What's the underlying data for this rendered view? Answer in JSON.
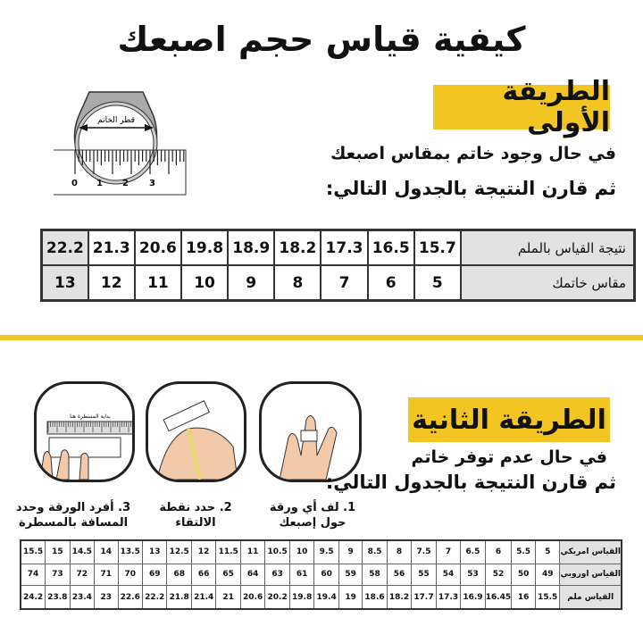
{
  "title": "كيفية قياس حجم اصبعك",
  "method1": {
    "heading": "الطريقة الأولى",
    "line1": "في حال وجود خاتم بمقاس اصبعك",
    "line2": "ثم قارن النتيجة بالجدول التالي:",
    "illustration": {
      "label": "قطر الخاتم",
      "ticks": [
        "0",
        "1",
        "2",
        "3"
      ]
    },
    "table": {
      "row_headers": [
        "نتيجة القياس بالملم",
        "مقاس خاتمك"
      ],
      "mm": [
        "15.7",
        "16.5",
        "17.3",
        "18.2",
        "18.9",
        "19.8",
        "20.6",
        "21.3",
        "22.2"
      ],
      "size": [
        "5",
        "6",
        "7",
        "8",
        "9",
        "10",
        "11",
        "12",
        "13"
      ]
    }
  },
  "method2": {
    "heading": "الطريقة الثانية",
    "line1": "في حال عدم توفر خاتم",
    "line2": "ثم قارن النتيجة بالجدول التالي:",
    "steps": [
      {
        "text": "1. لف أي ورقة حول إصبعك"
      },
      {
        "text": "2. حدد نقطة الالتقاء"
      },
      {
        "text": "3. أفرد الورقة وحدد المسافة بالمسطرة",
        "ruler_label": "بداية المسطرة هنا"
      }
    ],
    "table": {
      "row_headers": [
        "القياس امريكي",
        "القياس اوروبي",
        "القياس ملم"
      ],
      "us": [
        "5",
        "5.5",
        "6",
        "6.5",
        "7",
        "7.5",
        "8",
        "8.5",
        "9",
        "9.5",
        "10",
        "10.5",
        "11",
        "11.5",
        "12",
        "12.5",
        "13",
        "13.5",
        "14",
        "14.5",
        "15",
        "15.5"
      ],
      "eu": [
        "49",
        "50",
        "52",
        "53",
        "54",
        "55",
        "56",
        "58",
        "59",
        "60",
        "61",
        "63",
        "64",
        "65",
        "66",
        "68",
        "69",
        "70",
        "71",
        "72",
        "73",
        "74"
      ],
      "mm": [
        "15.5",
        "16",
        "16.45",
        "16.9",
        "17.3",
        "17.7",
        "18.2",
        "18.6",
        "19",
        "19.4",
        "19.8",
        "20.2",
        "20.6",
        "21",
        "21.4",
        "21.8",
        "22.2",
        "22.6",
        "23",
        "23.4",
        "23.8",
        "24.2"
      ]
    }
  },
  "colors": {
    "accent": "#f2c522",
    "header_cell": "#e2e2e2"
  }
}
